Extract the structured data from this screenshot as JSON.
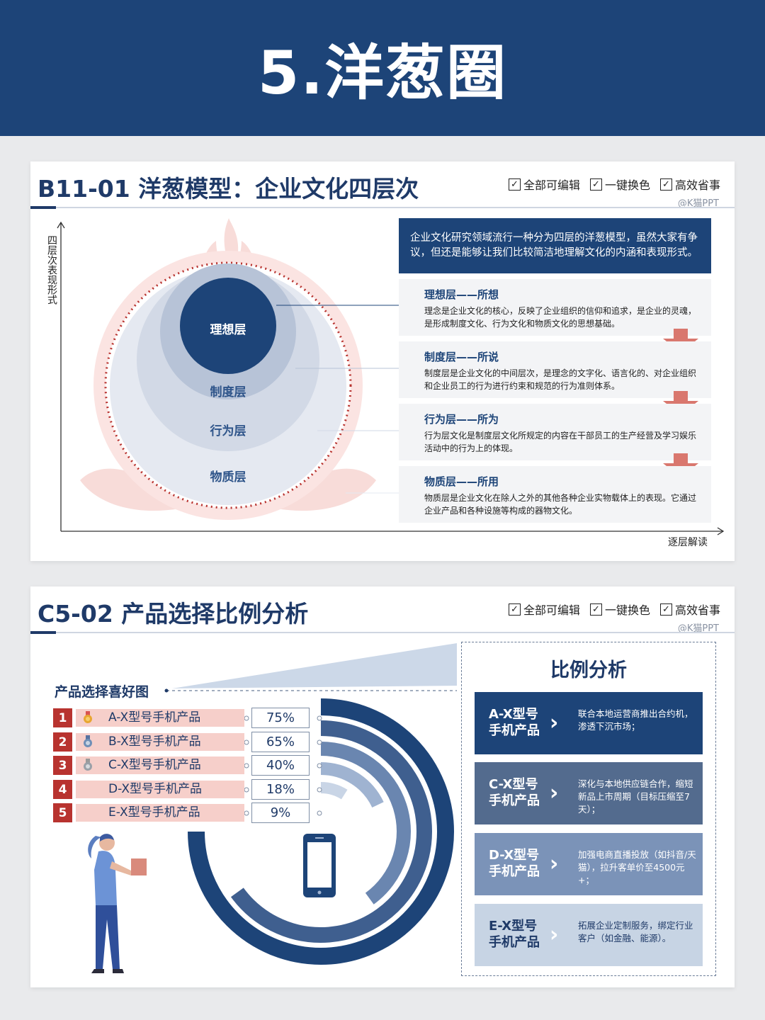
{
  "banner": {
    "title": "5.洋葱圈"
  },
  "features": [
    "全部可编辑",
    "一键换色",
    "高效省事"
  ],
  "check_glyph": "✓",
  "credit": "@K猫PPT",
  "slide1": {
    "title": "B11-01  洋葱模型：企业文化四层次",
    "y_axis_label": "四层次表现形式",
    "x_axis_label": "逐层解读",
    "intro": "企业文化研究领域流行一种分为四层的洋葱模型，虽然大家有争议，但还是能够让我们比较简洁地理解文化的内涵和表现形式。",
    "onion_layers": [
      "理想层",
      "制度层",
      "行为层",
      "物质层"
    ],
    "layers": [
      {
        "title": "理想层——所想",
        "desc": "理念是企业文化的核心，反映了企业组织的信仰和追求，是企业的灵魂，是形成制度文化、行为文化和物质文化的思想基础。"
      },
      {
        "title": "制度层——所说",
        "desc": "制度层是企业文化的中间层次，是理念的文字化、语言化的、对企业组织和企业员工的行为进行约束和规范的行为准则体系。"
      },
      {
        "title": "行为层——所为",
        "desc": "行为层文化是制度层文化所规定的内容在干部员工的生产经营及学习娱乐活动中的行为上的体现。"
      },
      {
        "title": "物质层——所用",
        "desc": "物质层是企业文化在除人之外的其他各种企业实物载体上的表现。它通过企业产品和各种设施等构成的器物文化。"
      }
    ],
    "colors": {
      "navy": "#1d4478",
      "arrow": "#d9776e"
    }
  },
  "slide2": {
    "title": "C5-02 产品选择比例分析",
    "pref_title": "产品选择喜好图",
    "ranking": [
      {
        "rank": "1",
        "label": "A-X型号手机产品",
        "value": "75%",
        "share": 0.75,
        "medal": "gold"
      },
      {
        "rank": "2",
        "label": "B-X型号手机产品",
        "value": "65%",
        "share": 0.65,
        "medal": "silver"
      },
      {
        "rank": "3",
        "label": "C-X型号手机产品",
        "value": "40%",
        "share": 0.4,
        "medal": "bronze"
      },
      {
        "rank": "4",
        "label": "D-X型号手机产品",
        "value": "18%",
        "share": 0.18,
        "medal": ""
      },
      {
        "rank": "5",
        "label": "E-X型号手机产品",
        "value": "9%",
        "share": 0.09,
        "medal": ""
      }
    ],
    "analysis_title": "比例分析",
    "analysis": [
      {
        "name": "A-X型号\n手机产品",
        "desc": "联合本地运营商推出合约机，渗透下沉市场；",
        "color": "#1d4478"
      },
      {
        "name": "C-X型号\n手机产品",
        "desc": "深化与本地供应链合作，缩短新品上市周期（目标压缩至7天）；",
        "color": "#536b8e"
      },
      {
        "name": "D-X型号\n手机产品",
        "desc": "加强电商直播投放（如抖音/天猫），拉升客单价至4500元+；",
        "color": "#7b93b8"
      },
      {
        "name": "E-X型号\n手机产品",
        "desc": "拓展企业定制服务，绑定行业客户（如金融、能源）。",
        "color": "#c7d4e4"
      }
    ],
    "ring_colors": [
      "#1d4478",
      "#3f5f8f",
      "#6a86b0",
      "#9fb3d1",
      "#c9d5e6"
    ]
  }
}
